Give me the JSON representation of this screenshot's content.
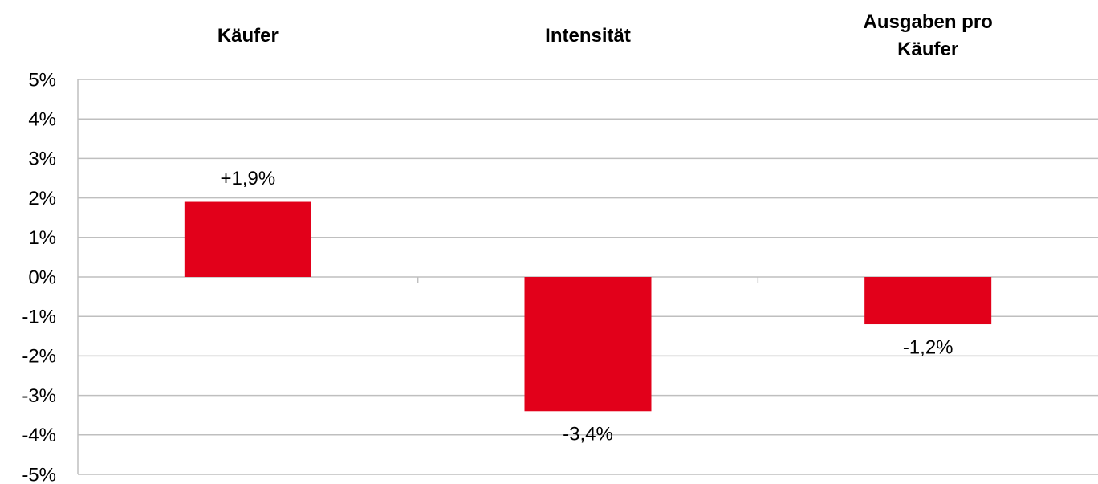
{
  "chart_data": {
    "type": "bar",
    "categories": [
      "Käufer",
      "Intensität",
      "Ausgaben pro Käufer"
    ],
    "values": [
      1.9,
      -3.4,
      -1.2
    ],
    "value_labels": [
      "+1,9%",
      "-3,4%",
      "-1,2%"
    ],
    "color": "#e2001a",
    "ylim": [
      -5,
      5
    ],
    "yticks": [
      {
        "value": -5,
        "label": "-5%"
      },
      {
        "value": -4,
        "label": "-4%"
      },
      {
        "value": -3,
        "label": "-3%"
      },
      {
        "value": -2,
        "label": "-2%"
      },
      {
        "value": -1,
        "label": "-1%"
      },
      {
        "value": 0,
        "label": "0%"
      },
      {
        "value": 1,
        "label": "1%"
      },
      {
        "value": 2,
        "label": "2%"
      },
      {
        "value": 3,
        "label": "3%"
      },
      {
        "value": 4,
        "label": "4%"
      },
      {
        "value": 5,
        "label": "5%"
      }
    ],
    "grid": true
  }
}
